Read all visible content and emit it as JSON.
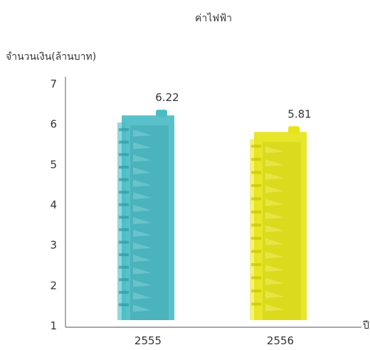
{
  "chart_data": {
    "type": "bar",
    "title": "ค่าไฟฟ้า",
    "ylabel": "จำนวนเงิน(ล้านบาท)",
    "xlabel": "ปี",
    "categories": [
      "2555",
      "2556"
    ],
    "values": [
      6.22,
      5.81
    ],
    "data_labels": [
      "6.22",
      "5.81"
    ],
    "ylim": [
      1,
      7
    ],
    "yticks": [
      1,
      2,
      3,
      4,
      5,
      6,
      7
    ],
    "grid": false,
    "legend": "none",
    "colors": {
      "bar_1": "#4bbcc4",
      "bar_1_dark": "#2e9aa3",
      "bar_1_light": "#8fd8dd",
      "bar_2": "#e6e41a",
      "bar_2_dark": "#c6c400",
      "bar_2_light": "#f3f27a",
      "axis": "#8a8a8a"
    }
  }
}
